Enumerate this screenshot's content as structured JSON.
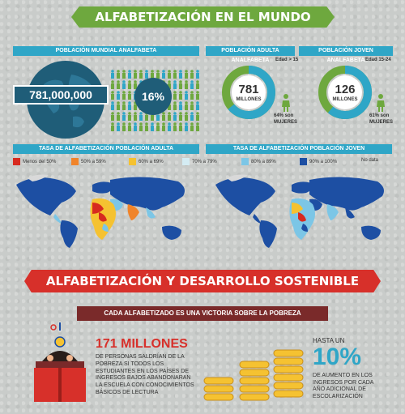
{
  "header": {
    "title": "ALFABETIZACIÓN EN EL MUNDO"
  },
  "world_illiterate": {
    "title": "POBLACIÓN MUNDIAL ANALFABETA",
    "count": "781,000,000",
    "percent": "16%"
  },
  "adult_illiterate": {
    "title": "POBLACIÓN ADULTA ANALFABETA",
    "age": "Edad > 15",
    "value": "781",
    "unit": "MILLONES",
    "women_pct": "64% son",
    "women_label": "MUJERES",
    "women_share": 0.64
  },
  "young_illiterate": {
    "title": "POBLACIÓN JOVEN ANALFABETA",
    "age": "Edad 15-24",
    "value": "126",
    "unit": "MILLONES",
    "women_pct": "61% son",
    "women_label": "MUJERES",
    "women_share": 0.61
  },
  "rates": {
    "adult_title": "TASA DE ALFABETIZACIÓN POBLACIÓN ADULTA",
    "young_title": "TASA DE ALFABETIZACIÓN POBLACIÓN JOVEN",
    "legend": [
      {
        "label": "Menos del 50%",
        "color": "#d72a1f"
      },
      {
        "label": "50% a 59%",
        "color": "#f0842a"
      },
      {
        "label": "60% a 69%",
        "color": "#f5c231"
      },
      {
        "label": "70% a 79%",
        "color": "#d4ecf3"
      },
      {
        "label": "80% a 89%",
        "color": "#7cc6e6"
      },
      {
        "label": "90% a 100%",
        "color": "#1d4fa3"
      },
      {
        "label": "No data",
        "color": "#d9d9d9"
      }
    ]
  },
  "sustainable": {
    "title": "ALFABETIZACIÓN Y DESARROLLO SOSTENIBLE",
    "subtitle": "CADA ALFABETIZADO ES UNA VICTORIA SOBRE LA POBREZA",
    "stat_big": "171 MILLONES",
    "stat_text": "DE PERSONAS SALDRÍAN DE LA POBREZA SI TODOS LOS ESTUDIANTES EN LOS PAÍSES DE INGRESOS BAJOS ABANDONARAN LA ESCUELA CON CONOCIMIENTOS BÁSICOS DE LECTURA",
    "hasta": "HASTA UN",
    "pct": "10%",
    "pct_text": "DE AUMENTO EN LOS INGRESOS POR CADA AÑO ADICIONAL DE ESCOLARIZACIÓN"
  },
  "colors": {
    "green": "#6ea83e",
    "blue": "#2fa6c7",
    "navy": "#1f5d78",
    "red": "#d7302a"
  }
}
